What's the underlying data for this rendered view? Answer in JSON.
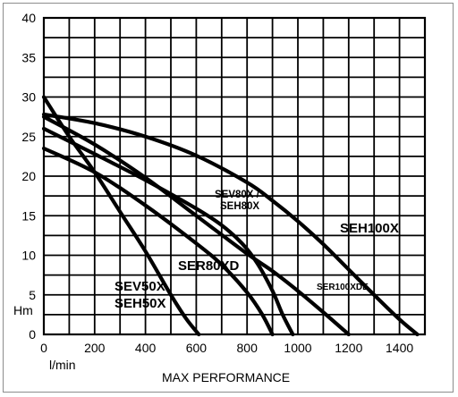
{
  "chart_data": {
    "type": "line",
    "xlabel": "MAX PERFORMANCE",
    "x_unit": "l/min",
    "y_unit": "Hm",
    "xlim": [
      0,
      1500
    ],
    "ylim": [
      0,
      40
    ],
    "x_ticks": [
      "0",
      "200",
      "400",
      "600",
      "800",
      "1000",
      "1200",
      "1400"
    ],
    "y_ticks": [
      "0",
      "5",
      "10",
      "15",
      "20",
      "25",
      "30",
      "35",
      "40"
    ],
    "x_grid_step": 100,
    "y_grid_step": 2.5,
    "grid": true,
    "series": [
      {
        "name": "SEV50X / SEH50X",
        "x": [
          0,
          100,
          200,
          300,
          400,
          500,
          560,
          610
        ],
        "y": [
          30,
          25,
          20.5,
          15.5,
          10.5,
          5,
          2,
          0
        ]
      },
      {
        "name": "SER80XD",
        "x": [
          0,
          200,
          400,
          600,
          700,
          800,
          860,
          900
        ],
        "y": [
          23.5,
          20.5,
          16.3,
          11.5,
          8.8,
          5.3,
          2.5,
          0
        ]
      },
      {
        "name": "SEV80X / SEH80X",
        "x": [
          0,
          200,
          400,
          600,
          700,
          780,
          840,
          900,
          940,
          980
        ],
        "y": [
          26,
          22.8,
          19.5,
          15.9,
          13.8,
          11.5,
          9,
          5.5,
          2.5,
          0
        ]
      },
      {
        "name": "SER100XDE",
        "x": [
          0,
          200,
          400,
          600,
          800,
          900,
          1000,
          1100,
          1200
        ],
        "y": [
          27.5,
          24,
          19.8,
          15,
          10.2,
          8,
          5.5,
          2.8,
          0
        ]
      },
      {
        "name": "SEH100X",
        "x": [
          0,
          200,
          400,
          600,
          800,
          900,
          1000,
          1100,
          1200,
          1300,
          1400,
          1470
        ],
        "y": [
          27.8,
          26.7,
          25,
          22.6,
          19.2,
          16.9,
          14.3,
          11.4,
          8.2,
          5,
          1.9,
          0
        ]
      }
    ],
    "curve_labels": {
      "sev50x": "SEV50X",
      "seh50x": "SEH50X",
      "ser80xd": "SER80XD",
      "sev80x": "SEV80X /",
      "seh80x": "SEH80X",
      "ser100xde": "SER100XDE",
      "seh100x": "SEH100X"
    }
  }
}
